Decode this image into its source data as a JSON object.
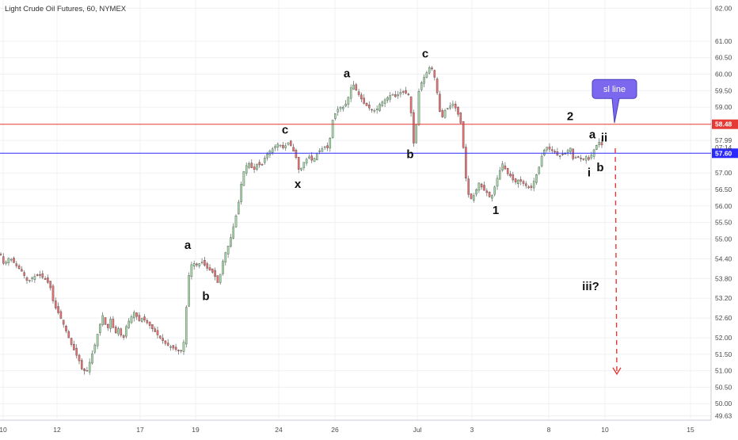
{
  "chart_data": {
    "type": "candlestick",
    "title": "Light Crude Oil Futures, 60, NYMEX",
    "y_axis": {
      "range": [
        49.5,
        62.25
      ],
      "ticks": [
        "62.00",
        "61.00",
        "60.50",
        "60.00",
        "59.50",
        "59.00",
        "57.99",
        "57.00",
        "56.50",
        "56.00",
        "55.50",
        "55.00",
        "54.40",
        "53.80",
        "53.20",
        "52.60",
        "52.00",
        "51.50",
        "51.00",
        "50.50",
        "50.00",
        "49.63"
      ]
    },
    "x_axis": {
      "tick_labels": [
        "10",
        "12",
        "17",
        "19",
        "24",
        "26",
        "Jul",
        "3",
        "8",
        "10",
        "15"
      ]
    },
    "current_time_label": "07:14",
    "levels": [
      {
        "name": "58.48",
        "value": 58.48,
        "color": "#e53935"
      },
      {
        "name": "57.60",
        "value": 57.6,
        "color": "#2a2aff"
      }
    ],
    "price_path": [
      [
        0,
        54.6
      ],
      [
        5,
        54.2
      ],
      [
        12,
        54.45
      ],
      [
        20,
        54.2
      ],
      [
        28,
        54.0
      ],
      [
        35,
        53.7
      ],
      [
        42,
        53.85
      ],
      [
        50,
        53.9
      ],
      [
        58,
        53.75
      ],
      [
        63,
        53.6
      ],
      [
        68,
        53.0
      ],
      [
        75,
        52.7
      ],
      [
        82,
        52.3
      ],
      [
        90,
        51.8
      ],
      [
        96,
        51.5
      ],
      [
        100,
        51.3
      ],
      [
        104,
        51.0
      ],
      [
        110,
        51.0
      ],
      [
        115,
        51.4
      ],
      [
        120,
        51.8
      ],
      [
        125,
        52.3
      ],
      [
        130,
        52.7
      ],
      [
        135,
        52.2
      ],
      [
        140,
        52.6
      ],
      [
        145,
        52.1
      ],
      [
        150,
        52.3
      ],
      [
        155,
        51.9
      ],
      [
        160,
        52.4
      ],
      [
        165,
        52.6
      ],
      [
        170,
        52.8
      ],
      [
        175,
        52.5
      ],
      [
        180,
        52.6
      ],
      [
        188,
        52.4
      ],
      [
        195,
        52.2
      ],
      [
        202,
        52.0
      ],
      [
        210,
        51.8
      ],
      [
        218,
        51.7
      ],
      [
        225,
        51.6
      ],
      [
        230,
        51.6
      ],
      [
        233,
        52.0
      ],
      [
        236,
        53.2
      ],
      [
        239,
        54.0
      ],
      [
        243,
        54.3
      ],
      [
        248,
        54.2
      ],
      [
        255,
        54.3
      ],
      [
        262,
        54.1
      ],
      [
        268,
        54.0
      ],
      [
        273,
        53.8
      ],
      [
        276,
        53.6
      ],
      [
        280,
        54.2
      ],
      [
        285,
        54.6
      ],
      [
        290,
        54.9
      ],
      [
        295,
        55.4
      ],
      [
        300,
        55.9
      ],
      [
        303,
        56.4
      ],
      [
        306,
        56.9
      ],
      [
        310,
        57.2
      ],
      [
        315,
        57.3
      ],
      [
        320,
        57.05
      ],
      [
        325,
        57.3
      ],
      [
        330,
        57.2
      ],
      [
        335,
        57.5
      ],
      [
        340,
        57.65
      ],
      [
        345,
        57.75
      ],
      [
        352,
        57.9
      ],
      [
        358,
        57.75
      ],
      [
        365,
        57.95
      ],
      [
        370,
        57.7
      ],
      [
        375,
        57.4
      ],
      [
        378,
        57.0
      ],
      [
        383,
        57.3
      ],
      [
        390,
        57.5
      ],
      [
        395,
        57.35
      ],
      [
        400,
        57.6
      ],
      [
        405,
        57.7
      ],
      [
        410,
        57.8
      ],
      [
        415,
        57.75
      ],
      [
        420,
        58.6
      ],
      [
        425,
        58.9
      ],
      [
        430,
        59.0
      ],
      [
        435,
        59.0
      ],
      [
        440,
        59.3
      ],
      [
        445,
        59.75
      ],
      [
        450,
        59.5
      ],
      [
        455,
        59.3
      ],
      [
        460,
        59.1
      ],
      [
        465,
        59.0
      ],
      [
        470,
        58.9
      ],
      [
        475,
        58.9
      ],
      [
        480,
        59.1
      ],
      [
        485,
        59.2
      ],
      [
        490,
        59.3
      ],
      [
        495,
        59.4
      ],
      [
        500,
        59.3
      ],
      [
        505,
        59.45
      ],
      [
        510,
        59.45
      ],
      [
        515,
        59.4
      ],
      [
        518,
        59.3
      ],
      [
        521,
        58.0
      ],
      [
        524,
        57.8
      ],
      [
        528,
        59.4
      ],
      [
        533,
        59.8
      ],
      [
        538,
        60.0
      ],
      [
        542,
        60.2
      ],
      [
        546,
        60.15
      ],
      [
        550,
        59.8
      ],
      [
        554,
        59.1
      ],
      [
        557,
        58.6
      ],
      [
        562,
        58.9
      ],
      [
        567,
        59.0
      ],
      [
        572,
        59.1
      ],
      [
        577,
        58.9
      ],
      [
        582,
        58.5
      ],
      [
        585,
        57.8
      ],
      [
        588,
        56.9
      ],
      [
        592,
        56.3
      ],
      [
        596,
        56.2
      ],
      [
        600,
        56.4
      ],
      [
        605,
        56.7
      ],
      [
        610,
        56.5
      ],
      [
        615,
        56.4
      ],
      [
        620,
        56.2
      ],
      [
        625,
        56.6
      ],
      [
        630,
        57.0
      ],
      [
        635,
        57.3
      ],
      [
        640,
        57.0
      ],
      [
        645,
        56.9
      ],
      [
        650,
        56.7
      ],
      [
        655,
        56.8
      ],
      [
        660,
        56.7
      ],
      [
        665,
        56.6
      ],
      [
        670,
        56.5
      ],
      [
        675,
        56.8
      ],
      [
        680,
        57.1
      ],
      [
        685,
        57.6
      ],
      [
        690,
        57.8
      ],
      [
        695,
        57.7
      ],
      [
        700,
        57.65
      ],
      [
        705,
        57.5
      ],
      [
        710,
        57.55
      ],
      [
        715,
        57.6
      ],
      [
        720,
        57.8
      ],
      [
        724,
        57.4
      ],
      [
        728,
        57.5
      ],
      [
        732,
        57.45
      ],
      [
        736,
        57.4
      ],
      [
        740,
        57.5
      ],
      [
        744,
        57.4
      ],
      [
        748,
        57.6
      ],
      [
        752,
        57.8
      ],
      [
        757,
        57.95
      ],
      [
        760,
        57.85
      ]
    ],
    "annotations": [
      {
        "label": "a",
        "kind": "wave",
        "x": 237,
        "y": 54.7
      },
      {
        "label": "b",
        "kind": "wave",
        "x": 260,
        "y": 53.15
      },
      {
        "label": "c",
        "kind": "wave",
        "x": 360,
        "y": 58.2
      },
      {
        "label": "x",
        "kind": "wave",
        "x": 376,
        "y": 56.55
      },
      {
        "label": "a",
        "kind": "wave",
        "x": 438,
        "y": 59.9
      },
      {
        "label": "b",
        "kind": "wave",
        "x": 518,
        "y": 57.45
      },
      {
        "label": "c",
        "kind": "wave",
        "x": 537,
        "y": 60.5
      },
      {
        "label": "1",
        "kind": "wave",
        "x": 626,
        "y": 55.75
      },
      {
        "label": "2",
        "kind": "wave",
        "x": 720,
        "y": 58.6
      },
      {
        "label": "a",
        "kind": "wave",
        "x": 748,
        "y": 58.05
      },
      {
        "label": "ii",
        "kind": "wave",
        "x": 763,
        "y": 57.95
      },
      {
        "label": "i",
        "kind": "wave",
        "x": 744,
        "y": 56.9
      },
      {
        "label": "b",
        "kind": "wave",
        "x": 758,
        "y": 57.05
      },
      {
        "label": "iii?",
        "kind": "wave",
        "x": 746,
        "y": 53.45
      }
    ],
    "callout": {
      "label": "sl line",
      "color": "#7b68ee",
      "x": 776,
      "y": 59.55
    },
    "projection": {
      "from_x": 777,
      "from_y": 57.75,
      "to_x": 779,
      "to_y": 50.9,
      "color": "#e53935"
    },
    "legend": "none",
    "grid": true
  }
}
